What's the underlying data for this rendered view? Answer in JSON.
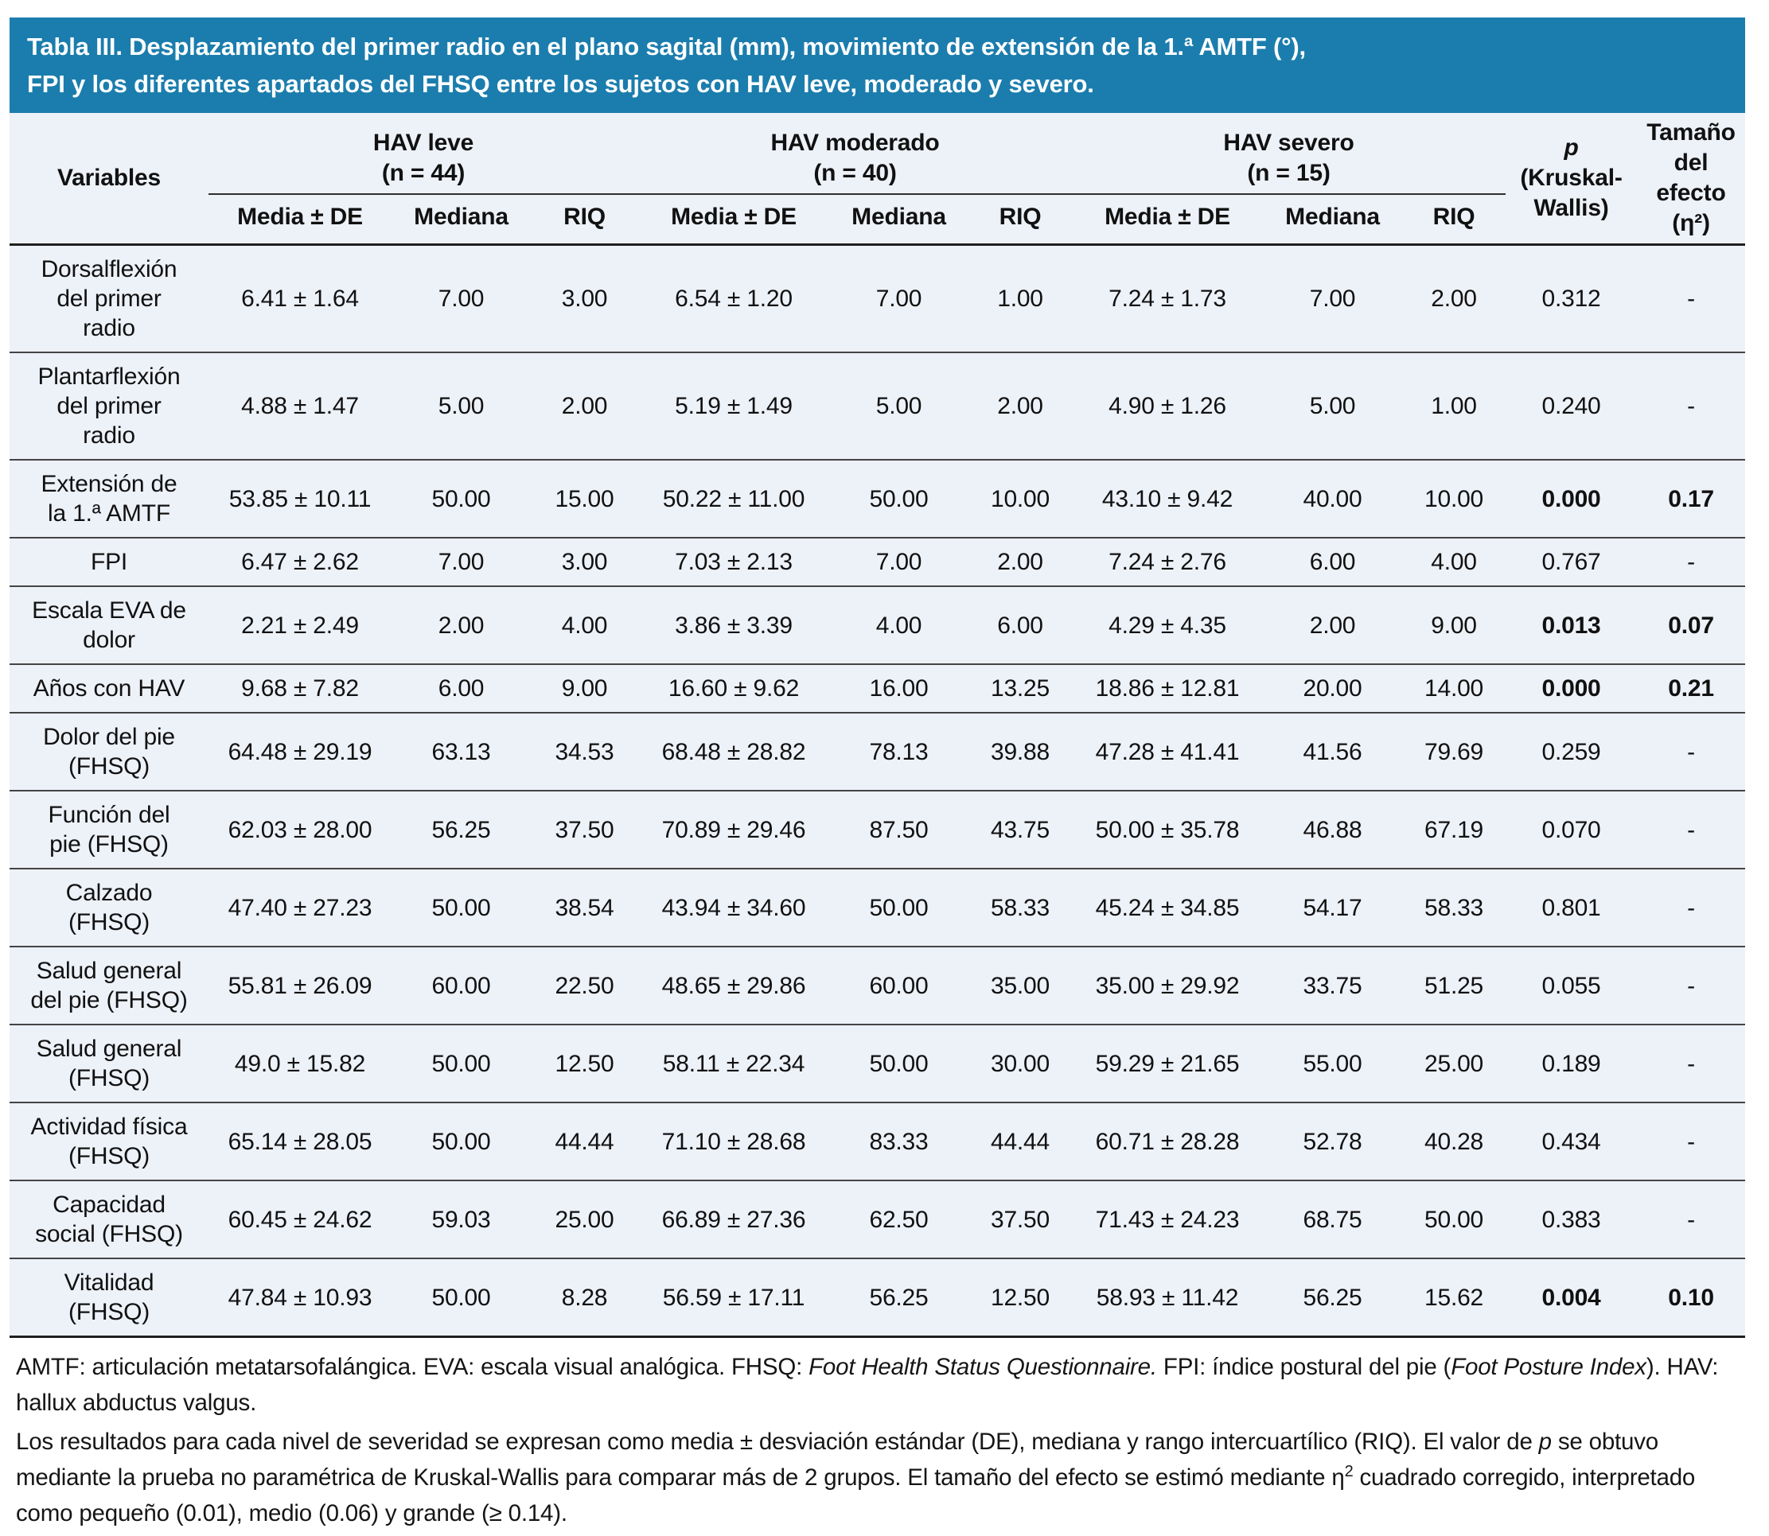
{
  "colors": {
    "title_bar_bg": "#1b7dad",
    "title_text": "#ffffff",
    "table_bg": "#edf1f8",
    "text": "#151515",
    "row_rule": "#444444",
    "heavy_rule": "#1f1f1f"
  },
  "table": {
    "title": "Tabla III. Desplazamiento del primer radio en el plano sagital (mm), movimiento de extensión de la 1.ª AMTF (°), FPI y los diferentes apartados del FHSQ entre los sujetos con HAV leve, moderado y severo.",
    "variables_label": "Variables",
    "groups": [
      {
        "name": "HAV leve",
        "n": "(n = 44)"
      },
      {
        "name": "HAV moderado",
        "n": "(n = 40)"
      },
      {
        "name": "HAV severo",
        "n": "(n = 15)"
      }
    ],
    "subheaders": [
      "Media ± DE",
      "Mediana",
      "RIQ"
    ],
    "p_label_italic": "p",
    "p_label_rest": "(Kruskal-Wallis)",
    "effect_label": "Tamaño del efecto (η²)",
    "rows": [
      {
        "variable": "Dorsalflexión del primer radio",
        "values": [
          "6.41 ± 1.64",
          "7.00",
          "3.00",
          "6.54 ± 1.20",
          "7.00",
          "1.00",
          "7.24 ± 1.73",
          "7.00",
          "2.00"
        ],
        "p": "0.312",
        "effect": "-",
        "significant": false
      },
      {
        "variable": "Plantarflexión del primer radio",
        "values": [
          "4.88 ± 1.47",
          "5.00",
          "2.00",
          "5.19 ± 1.49",
          "5.00",
          "2.00",
          "4.90 ± 1.26",
          "5.00",
          "1.00"
        ],
        "p": "0.240",
        "effect": "-",
        "significant": false
      },
      {
        "variable": "Extensión de la 1.ª AMTF",
        "values": [
          "53.85 ± 10.11",
          "50.00",
          "15.00",
          "50.22 ± 11.00",
          "50.00",
          "10.00",
          "43.10 ± 9.42",
          "40.00",
          "10.00"
        ],
        "p": "0.000",
        "effect": "0.17",
        "significant": true
      },
      {
        "variable": "FPI",
        "values": [
          "6.47 ± 2.62",
          "7.00",
          "3.00",
          "7.03 ± 2.13",
          "7.00",
          "2.00",
          "7.24 ± 2.76",
          "6.00",
          "4.00"
        ],
        "p": "0.767",
        "effect": "-",
        "significant": false
      },
      {
        "variable": "Escala EVA de dolor",
        "values": [
          "2.21 ± 2.49",
          "2.00",
          "4.00",
          "3.86 ± 3.39",
          "4.00",
          "6.00",
          "4.29 ± 4.35",
          "2.00",
          "9.00"
        ],
        "p": "0.013",
        "effect": "0.07",
        "significant": true
      },
      {
        "variable": "Años con HAV",
        "values": [
          "9.68 ± 7.82",
          "6.00",
          "9.00",
          "16.60 ± 9.62",
          "16.00",
          "13.25",
          "18.86 ± 12.81",
          "20.00",
          "14.00"
        ],
        "p": "0.000",
        "effect": "0.21",
        "significant": true
      },
      {
        "variable": "Dolor del pie (FHSQ)",
        "values": [
          "64.48 ± 29.19",
          "63.13",
          "34.53",
          "68.48 ± 28.82",
          "78.13",
          "39.88",
          "47.28 ± 41.41",
          "41.56",
          "79.69"
        ],
        "p": "0.259",
        "effect": "-",
        "significant": false
      },
      {
        "variable": "Función del pie (FHSQ)",
        "values": [
          "62.03 ± 28.00",
          "56.25",
          "37.50",
          "70.89 ± 29.46",
          "87.50",
          "43.75",
          "50.00 ± 35.78",
          "46.88",
          "67.19"
        ],
        "p": "0.070",
        "effect": "-",
        "significant": false
      },
      {
        "variable": "Calzado (FHSQ)",
        "values": [
          "47.40 ± 27.23",
          "50.00",
          "38.54",
          "43.94 ± 34.60",
          "50.00",
          "58.33",
          "45.24 ± 34.85",
          "54.17",
          "58.33"
        ],
        "p": "0.801",
        "effect": "-",
        "significant": false
      },
      {
        "variable": "Salud general del pie (FHSQ)",
        "values": [
          "55.81 ± 26.09",
          "60.00",
          "22.50",
          "48.65 ± 29.86",
          "60.00",
          "35.00",
          "35.00 ± 29.92",
          "33.75",
          "51.25"
        ],
        "p": "0.055",
        "effect": "-",
        "significant": false
      },
      {
        "variable": "Salud general (FHSQ)",
        "values": [
          "49.0 ± 15.82",
          "50.00",
          "12.50",
          "58.11 ± 22.34",
          "50.00",
          "30.00",
          "59.29 ± 21.65",
          "55.00",
          "25.00"
        ],
        "p": "0.189",
        "effect": "-",
        "significant": false
      },
      {
        "variable": "Actividad física (FHSQ)",
        "values": [
          "65.14 ± 28.05",
          "50.00",
          "44.44",
          "71.10 ± 28.68",
          "83.33",
          "44.44",
          "60.71 ± 28.28",
          "52.78",
          "40.28"
        ],
        "p": "0.434",
        "effect": "-",
        "significant": false
      },
      {
        "variable": "Capacidad social (FHSQ)",
        "values": [
          "60.45 ± 24.62",
          "59.03",
          "25.00",
          "66.89 ± 27.36",
          "62.50",
          "37.50",
          "71.43 ± 24.23",
          "68.75",
          "50.00"
        ],
        "p": "0.383",
        "effect": "-",
        "significant": false
      },
      {
        "variable": "Vitalidad (FHSQ)",
        "values": [
          "47.84 ± 10.93",
          "50.00",
          "8.28",
          "56.59 ± 17.11",
          "56.25",
          "12.50",
          "58.93 ± 11.42",
          "56.25",
          "15.62"
        ],
        "p": "0.004",
        "effect": "0.10",
        "significant": true
      }
    ],
    "footnotes": {
      "abbreviations": [
        {
          "t": "AMTF: articulación metatarsofalángica. EVA: escala visual analógica. FHSQ: "
        },
        {
          "t": "Foot Health Status Questionnaire.",
          "i": true
        },
        {
          "t": " FPI: índice postural del pie ("
        },
        {
          "t": "Foot Posture Index",
          "i": true
        },
        {
          "t": "). HAV: hallux abductus valgus."
        }
      ],
      "methods": [
        {
          "t": "Los resultados para cada nivel de severidad se expresan como media ± desviación estándar (DE), mediana y rango intercuartílico (RIQ). El valor de "
        },
        {
          "t": "p",
          "i": true
        },
        {
          "t": " se obtuvo mediante la prueba no paramétrica de Kruskal-Wallis para comparar más de 2 grupos. El tamaño del efecto se estimó mediante η"
        },
        {
          "t": "2",
          "sup": true
        },
        {
          "t": " cuadrado corregido, interpretado como pequeño (0.01), medio (0.06) y grande (≥ 0.14)."
        }
      ]
    }
  }
}
